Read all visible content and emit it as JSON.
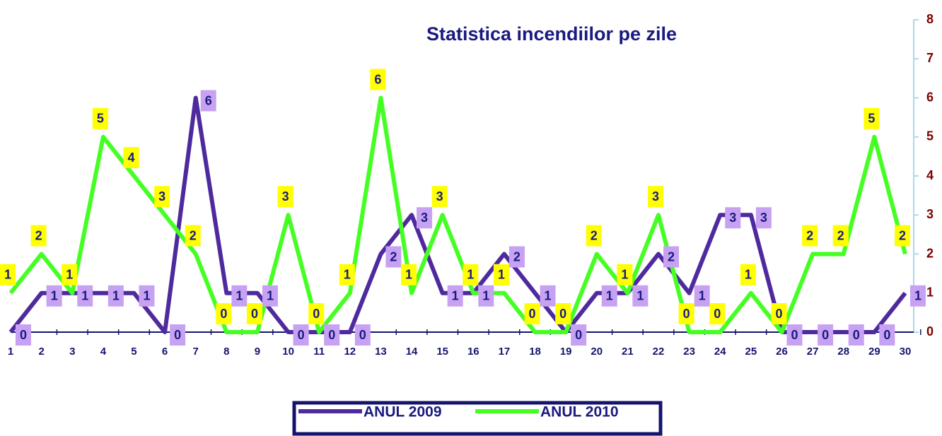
{
  "chart_data": {
    "type": "line",
    "title": "Statistica incendiilor pe zile",
    "categories": [
      "1",
      "2",
      "3",
      "4",
      "5",
      "6",
      "7",
      "8",
      "9",
      "10",
      "11",
      "12",
      "13",
      "14",
      "15",
      "16",
      "17",
      "18",
      "19",
      "20",
      "21",
      "22",
      "23",
      "24",
      "25",
      "26",
      "27",
      "28",
      "29",
      "30"
    ],
    "series": [
      {
        "name": "ANUL 2009",
        "color": "#4f2a9e",
        "label_color": "#c7a2f2",
        "values": [
          0,
          1,
          1,
          1,
          1,
          0,
          6,
          1,
          1,
          0,
          0,
          0,
          2,
          3,
          1,
          1,
          2,
          1,
          0,
          1,
          1,
          2,
          1,
          3,
          3,
          0,
          0,
          0,
          0,
          1
        ]
      },
      {
        "name": "ANUL 2010",
        "color": "#44ff22",
        "label_color": "#ffff00",
        "values": [
          1,
          2,
          1,
          5,
          4,
          3,
          2,
          0,
          0,
          3,
          0,
          1,
          6,
          1,
          3,
          1,
          1,
          0,
          0,
          2,
          1,
          3,
          0,
          0,
          1,
          0,
          2,
          2,
          5,
          2
        ]
      }
    ],
    "ylim": [
      0,
      8
    ],
    "yticks": [
      0,
      1,
      2,
      3,
      4,
      5,
      6,
      7,
      8
    ]
  }
}
